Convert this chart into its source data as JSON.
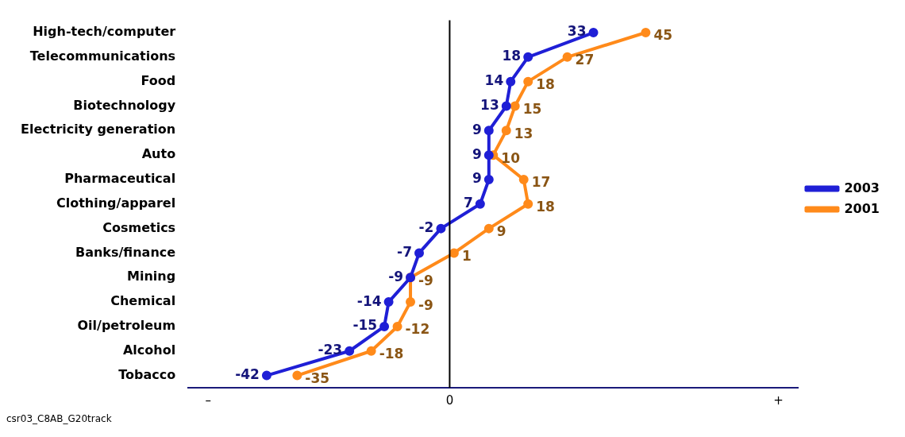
{
  "chart_data": {
    "type": "line",
    "orientation": "horizontal",
    "categories": [
      "High-tech/computer",
      "Telecommunications",
      "Food",
      "Biotechnology",
      "Electricity generation",
      "Auto",
      "Pharmaceutical",
      "Clothing/apparel",
      "Cosmetics",
      "Banks/finance",
      "Mining",
      "Chemical",
      "Oil/petroleum",
      "Alcohol",
      "Tobacco"
    ],
    "series": [
      {
        "name": "2003",
        "color": "#1f1fd6",
        "values": [
          33,
          18,
          14,
          13,
          9,
          9,
          9,
          7,
          -2,
          -7,
          -9,
          -14,
          -15,
          -23,
          -42
        ]
      },
      {
        "name": "2001",
        "color": "#ff8a1a",
        "values": [
          45,
          27,
          18,
          15,
          13,
          10,
          17,
          18,
          9,
          1,
          -9,
          -9,
          -12,
          -18,
          -35
        ]
      }
    ],
    "tick_labels": "y",
    "ref_lines": [
      {
        "axis": "x",
        "value": 0,
        "color": "#000000"
      }
    ],
    "data_labels": true,
    "marker": "circle",
    "legend": "right",
    "annotations": [
      "–",
      "0",
      "+",
      "csr03_C8AB_G20track"
    ]
  }
}
